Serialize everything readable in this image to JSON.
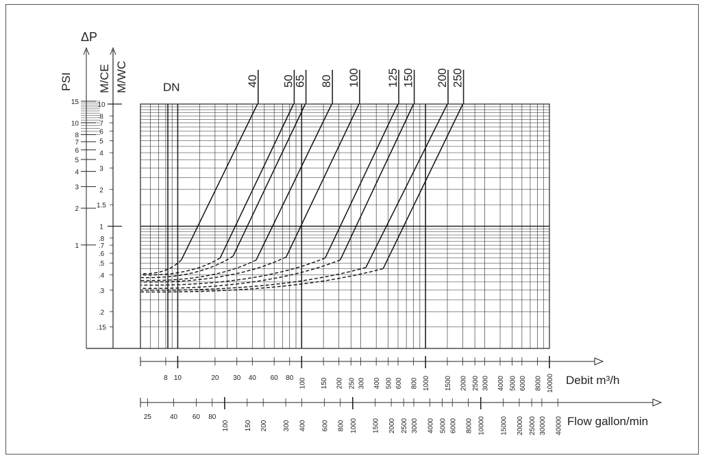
{
  "chart_data": {
    "type": "line",
    "title": "",
    "pressure_axes": {
      "delta_symbol": "ΔP",
      "psi": {
        "label": "PSI",
        "ticks": [
          {
            "value": 15,
            "label": "15"
          },
          {
            "value": 10,
            "label": "10"
          },
          {
            "value": 8,
            "label": "8"
          },
          {
            "value": 7,
            "label": "7"
          },
          {
            "value": 6,
            "label": "6"
          },
          {
            "value": 5,
            "label": "5"
          },
          {
            "value": 4,
            "label": "4"
          },
          {
            "value": 3,
            "label": "3"
          },
          {
            "value": 2,
            "label": "2"
          },
          {
            "value": 1,
            "label": "1"
          }
        ]
      },
      "mce": {
        "label": "M/CE",
        "ticks": [
          {
            "value": 10,
            "label": "10"
          },
          {
            "value": 8,
            "label": "8"
          },
          {
            "value": 7,
            "label": "7"
          },
          {
            "value": 6,
            "label": "6"
          },
          {
            "value": 5,
            "label": "5"
          },
          {
            "value": 4,
            "label": "4"
          },
          {
            "value": 3,
            "label": "3"
          },
          {
            "value": 2,
            "label": "2"
          },
          {
            "value": 1.5,
            "label": "1.5"
          },
          {
            "value": 1,
            "label": "1"
          },
          {
            "value": 0.8,
            "label": ".8"
          },
          {
            "value": 0.7,
            "label": ".7"
          },
          {
            "value": 0.6,
            "label": ".6"
          },
          {
            "value": 0.5,
            "label": ".5"
          },
          {
            "value": 0.4,
            "label": ".4"
          },
          {
            "value": 0.3,
            "label": ".3"
          },
          {
            "value": 0.2,
            "label": ".2"
          },
          {
            "value": 0.15,
            "label": ".15"
          }
        ]
      },
      "mwc": {
        "label": "M/WC"
      },
      "range": [
        0.1,
        10
      ]
    },
    "dn_label": "DN",
    "flow_axes": {
      "debit": {
        "label": "Debit m³/h",
        "range": [
          5,
          10000
        ],
        "ticks": [
          {
            "value": 8,
            "label": "8"
          },
          {
            "value": 10,
            "label": "10"
          },
          {
            "value": 20,
            "label": "20"
          },
          {
            "value": 30,
            "label": "30"
          },
          {
            "value": 40,
            "label": "40"
          },
          {
            "value": 60,
            "label": "60"
          },
          {
            "value": 80,
            "label": "80"
          },
          {
            "value": 100,
            "label": "100"
          },
          {
            "value": 150,
            "label": "150"
          },
          {
            "value": 200,
            "label": "200"
          },
          {
            "value": 250,
            "label": "250"
          },
          {
            "value": 300,
            "label": "300"
          },
          {
            "value": 400,
            "label": "400"
          },
          {
            "value": 500,
            "label": "500"
          },
          {
            "value": 600,
            "label": "600"
          },
          {
            "value": 800,
            "label": "800"
          },
          {
            "value": 1000,
            "label": "1000"
          },
          {
            "value": 1500,
            "label": "1500"
          },
          {
            "value": 2000,
            "label": "2000"
          },
          {
            "value": 2500,
            "label": "2500"
          },
          {
            "value": 3000,
            "label": "3000"
          },
          {
            "value": 4000,
            "label": "4000"
          },
          {
            "value": 5000,
            "label": "5000"
          },
          {
            "value": 6000,
            "label": "6000"
          },
          {
            "value": 8000,
            "label": "8000"
          },
          {
            "value": 10000,
            "label": "10000"
          }
        ]
      },
      "gallon": {
        "label": "Flow gallon/min",
        "range": [
          22,
          44000
        ],
        "ticks": [
          {
            "value": 25,
            "label": "25"
          },
          {
            "value": 40,
            "label": "40"
          },
          {
            "value": 60,
            "label": "60"
          },
          {
            "value": 80,
            "label": "80"
          },
          {
            "value": 100,
            "label": "100"
          },
          {
            "value": 150,
            "label": "150"
          },
          {
            "value": 200,
            "label": "200"
          },
          {
            "value": 300,
            "label": "300"
          },
          {
            "value": 400,
            "label": "400"
          },
          {
            "value": 600,
            "label": "600"
          },
          {
            "value": 800,
            "label": "800"
          },
          {
            "value": 1000,
            "label": "1000"
          },
          {
            "value": 1500,
            "label": "1500"
          },
          {
            "value": 2000,
            "label": "2000"
          },
          {
            "value": 2500,
            "label": "2500"
          },
          {
            "value": 3000,
            "label": "3000"
          },
          {
            "value": 4000,
            "label": "4000"
          },
          {
            "value": 5000,
            "label": "5000"
          },
          {
            "value": 6000,
            "label": "6000"
          },
          {
            "value": 8000,
            "label": "8000"
          },
          {
            "value": 10000,
            "label": "10000"
          },
          {
            "value": 15000,
            "label": "15000"
          },
          {
            "value": 20000,
            "label": "20000"
          },
          {
            "value": 25000,
            "label": "25000"
          },
          {
            "value": 30000,
            "label": "30000"
          },
          {
            "value": 40000,
            "label": "40000"
          }
        ]
      }
    },
    "series": [
      {
        "name": "40",
        "top_flow": 44,
        "knee_flow": 10.7,
        "knee_dp": 0.53,
        "start_dp": 0.41
      },
      {
        "name": "50",
        "top_flow": 86,
        "knee_flow": 22,
        "knee_dp": 0.55,
        "start_dp": 0.4
      },
      {
        "name": "65",
        "top_flow": 107,
        "knee_flow": 28,
        "knee_dp": 0.57,
        "start_dp": 0.38
      },
      {
        "name": "80",
        "top_flow": 175,
        "knee_flow": 43,
        "knee_dp": 0.53,
        "start_dp": 0.36
      },
      {
        "name": "100",
        "top_flow": 290,
        "knee_flow": 75,
        "knee_dp": 0.56,
        "start_dp": 0.35
      },
      {
        "name": "125",
        "top_flow": 600,
        "knee_flow": 155,
        "knee_dp": 0.55,
        "start_dp": 0.33
      },
      {
        "name": "150",
        "top_flow": 800,
        "knee_flow": 205,
        "knee_dp": 0.53,
        "start_dp": 0.31
      },
      {
        "name": "200",
        "top_flow": 1500,
        "knee_flow": 330,
        "knee_dp": 0.46,
        "start_dp": 0.3
      },
      {
        "name": "250",
        "top_flow": 2000,
        "knee_flow": 455,
        "knee_dp": 0.45,
        "start_dp": 0.29
      }
    ]
  }
}
